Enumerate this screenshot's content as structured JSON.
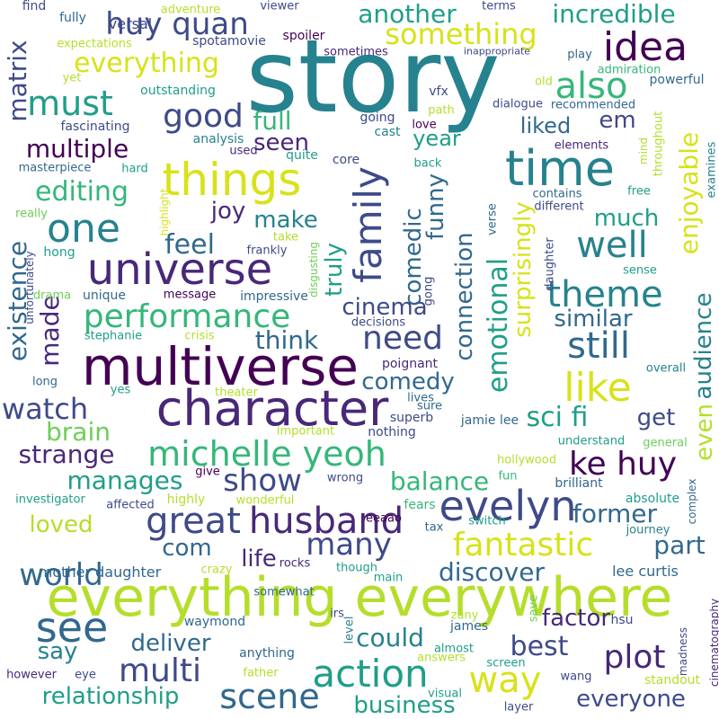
{
  "palette": {
    "p1": "#440154",
    "p2": "#482878",
    "p3": "#3e4a89",
    "p4": "#31688e",
    "p5": "#26828e",
    "p6": "#1f9e89",
    "p7": "#35b779",
    "p8": "#6ece58",
    "p9": "#b5de2b",
    "p10": "#d8e219"
  },
  "words": [
    {
      "t": "story",
      "c": "p5"
    },
    {
      "t": "everything everywhere",
      "c": "p9"
    },
    {
      "t": "multiverse",
      "c": "p1"
    },
    {
      "t": "character",
      "c": "p2"
    },
    {
      "t": "universe",
      "c": "p2"
    },
    {
      "t": "time",
      "c": "p5"
    },
    {
      "t": "things",
      "c": "p10"
    },
    {
      "t": "idea",
      "c": "p1"
    },
    {
      "t": "family",
      "c": "p3"
    },
    {
      "t": "great",
      "c": "p3"
    },
    {
      "t": "husband",
      "c": "p2"
    },
    {
      "t": "evelyn",
      "c": "p3"
    },
    {
      "t": "see",
      "c": "p4"
    },
    {
      "t": "action",
      "c": "p6"
    },
    {
      "t": "way",
      "c": "p10"
    },
    {
      "t": "scene",
      "c": "p4"
    },
    {
      "t": "michelle yeoh",
      "c": "p7"
    },
    {
      "t": "one",
      "c": "p5"
    },
    {
      "t": "huy quan",
      "c": "p3"
    },
    {
      "t": "something",
      "c": "p10"
    },
    {
      "t": "also",
      "c": "p7"
    },
    {
      "t": "like",
      "c": "p10"
    },
    {
      "t": "still",
      "c": "p4"
    },
    {
      "t": "theme",
      "c": "p5"
    },
    {
      "t": "well",
      "c": "p5"
    },
    {
      "t": "must",
      "c": "p6"
    },
    {
      "t": "good",
      "c": "p3"
    },
    {
      "t": "performance",
      "c": "p7"
    },
    {
      "t": "need",
      "c": "p3"
    },
    {
      "t": "ke huy",
      "c": "p1"
    },
    {
      "t": "fantastic",
      "c": "p10"
    },
    {
      "t": "multi",
      "c": "p3"
    },
    {
      "t": "plot",
      "c": "p2"
    },
    {
      "t": "many",
      "c": "p3"
    },
    {
      "t": "show",
      "c": "p3"
    },
    {
      "t": "world",
      "c": "p4"
    },
    {
      "t": "watch",
      "c": "p3"
    },
    {
      "t": "emotional",
      "c": "p6"
    },
    {
      "t": "enjoyable",
      "c": "p10"
    },
    {
      "t": "sci fi",
      "c": "p6"
    },
    {
      "t": "editing",
      "c": "p7"
    },
    {
      "t": "feel",
      "c": "p4"
    },
    {
      "t": "another",
      "c": "p6"
    },
    {
      "t": "incredible",
      "c": "p6"
    },
    {
      "t": "everything",
      "c": "p10"
    },
    {
      "t": "relationship",
      "c": "p6"
    },
    {
      "t": "everyone",
      "c": "p3"
    },
    {
      "t": "business",
      "c": "p6"
    },
    {
      "t": "best",
      "c": "p3"
    },
    {
      "t": "could",
      "c": "p5"
    },
    {
      "t": "deliver",
      "c": "p4"
    },
    {
      "t": "discover",
      "c": "p4"
    },
    {
      "t": "part",
      "c": "p4"
    },
    {
      "t": "former",
      "c": "p4"
    },
    {
      "t": "balance",
      "c": "p7"
    },
    {
      "t": "manages",
      "c": "p6"
    },
    {
      "t": "strange",
      "c": "p2"
    },
    {
      "t": "brain",
      "c": "p8"
    },
    {
      "t": "existence",
      "c": "p4"
    },
    {
      "t": "made",
      "c": "p2"
    },
    {
      "t": "matrix",
      "c": "p3"
    },
    {
      "t": "multiple",
      "c": "p1"
    },
    {
      "t": "full",
      "c": "p7"
    },
    {
      "t": "seen",
      "c": "p2"
    },
    {
      "t": "joy",
      "c": "p2"
    },
    {
      "t": "make",
      "c": "p5"
    },
    {
      "t": "truly",
      "c": "p6"
    },
    {
      "t": "comedic",
      "c": "p4"
    },
    {
      "t": "funny",
      "c": "p4"
    },
    {
      "t": "connection",
      "c": "p4"
    },
    {
      "t": "cinema",
      "c": "p3"
    },
    {
      "t": "think",
      "c": "p4"
    },
    {
      "t": "comedy",
      "c": "p4"
    },
    {
      "t": "surprisingly",
      "c": "p10"
    },
    {
      "t": "audience",
      "c": "p5"
    },
    {
      "t": "even",
      "c": "p9"
    },
    {
      "t": "similar",
      "c": "p4"
    },
    {
      "t": "get",
      "c": "p3"
    },
    {
      "t": "loved",
      "c": "p9"
    },
    {
      "t": "com",
      "c": "p4"
    },
    {
      "t": "life",
      "c": "p2"
    },
    {
      "t": "factor",
      "c": "p2"
    },
    {
      "t": "say",
      "c": "p5"
    },
    {
      "t": "much",
      "c": "p6"
    },
    {
      "t": "liked",
      "c": "p4"
    },
    {
      "t": "year",
      "c": "p6"
    },
    {
      "t": "em",
      "c": "p3"
    },
    {
      "t": "mother daughter",
      "c": "p4"
    },
    {
      "t": "lee curtis",
      "c": "p4"
    },
    {
      "t": "jamie lee",
      "c": "p4"
    },
    {
      "t": "absolute",
      "c": "p6"
    },
    {
      "t": "brilliant",
      "c": "p4"
    },
    {
      "t": "hollywood",
      "c": "p9"
    },
    {
      "t": "journey",
      "c": "p5"
    },
    {
      "t": "complex",
      "c": "p4"
    },
    {
      "t": "fun",
      "c": "p7"
    },
    {
      "t": "fears",
      "c": "p7"
    },
    {
      "t": "wonderful",
      "c": "p9"
    },
    {
      "t": "switch",
      "c": "p6"
    },
    {
      "t": "tax",
      "c": "p4"
    },
    {
      "t": "eeaao",
      "c": "p1"
    },
    {
      "t": "wrong",
      "c": "p3"
    },
    {
      "t": "highly",
      "c": "p9"
    },
    {
      "t": "affected",
      "c": "p3"
    },
    {
      "t": "investigator",
      "c": "p6"
    },
    {
      "t": "give",
      "c": "p1"
    },
    {
      "t": "important",
      "c": "p9"
    },
    {
      "t": "nothing",
      "c": "p3"
    },
    {
      "t": "understand",
      "c": "p6"
    },
    {
      "t": "general",
      "c": "p8"
    },
    {
      "t": "superb",
      "c": "p3"
    },
    {
      "t": "sure",
      "c": "p4"
    },
    {
      "t": "lives",
      "c": "p4"
    },
    {
      "t": "poignant",
      "c": "p2"
    },
    {
      "t": "overall",
      "c": "p5"
    },
    {
      "t": "decisions",
      "c": "p3"
    },
    {
      "t": "theater",
      "c": "p9"
    },
    {
      "t": "yes",
      "c": "p6"
    },
    {
      "t": "long",
      "c": "p4"
    },
    {
      "t": "stephanie",
      "c": "p6"
    },
    {
      "t": "crisis",
      "c": "p9"
    },
    {
      "t": "drama",
      "c": "p8"
    },
    {
      "t": "unique",
      "c": "p4"
    },
    {
      "t": "message",
      "c": "p1"
    },
    {
      "t": "impressive",
      "c": "p4"
    },
    {
      "t": "unfortunately",
      "c": "p3"
    },
    {
      "t": "hong",
      "c": "p6"
    },
    {
      "t": "really",
      "c": "p8"
    },
    {
      "t": "highlight",
      "c": "p10"
    },
    {
      "t": "take",
      "c": "p9"
    },
    {
      "t": "frankly",
      "c": "p3"
    },
    {
      "t": "disgusting",
      "c": "p8"
    },
    {
      "t": "masterpiece",
      "c": "p4"
    },
    {
      "t": "hard",
      "c": "p6"
    },
    {
      "t": "used",
      "c": "p2"
    },
    {
      "t": "quite",
      "c": "p6"
    },
    {
      "t": "core",
      "c": "p3"
    },
    {
      "t": "back",
      "c": "p6"
    },
    {
      "t": "analysis",
      "c": "p5"
    },
    {
      "t": "fascinating",
      "c": "p3"
    },
    {
      "t": "outstanding",
      "c": "p6"
    },
    {
      "t": "versal",
      "c": "p3"
    },
    {
      "t": "find",
      "c": "p3"
    },
    {
      "t": "fully",
      "c": "p4"
    },
    {
      "t": "adventure",
      "c": "p9"
    },
    {
      "t": "viewer",
      "c": "p3"
    },
    {
      "t": "terms",
      "c": "p3"
    },
    {
      "t": "spotamovie",
      "c": "p3"
    },
    {
      "t": "spoiler",
      "c": "p1"
    },
    {
      "t": "sometimes",
      "c": "p2"
    },
    {
      "t": "inappropriate",
      "c": "p3"
    },
    {
      "t": "expectations",
      "c": "p9"
    },
    {
      "t": "yet",
      "c": "p9"
    },
    {
      "t": "play",
      "c": "p4"
    },
    {
      "t": "admiration",
      "c": "p7"
    },
    {
      "t": "powerful",
      "c": "p4"
    },
    {
      "t": "recommended",
      "c": "p4"
    },
    {
      "t": "dialogue",
      "c": "p3"
    },
    {
      "t": "old",
      "c": "p9"
    },
    {
      "t": "vfx",
      "c": "p3"
    },
    {
      "t": "path",
      "c": "p9"
    },
    {
      "t": "going",
      "c": "p3"
    },
    {
      "t": "love",
      "c": "p1"
    },
    {
      "t": "cast",
      "c": "p5"
    },
    {
      "t": "throughout",
      "c": "p9"
    },
    {
      "t": "mind",
      "c": "p9"
    },
    {
      "t": "examines",
      "c": "p5"
    },
    {
      "t": "elements",
      "c": "p2"
    },
    {
      "t": "contains",
      "c": "p4"
    },
    {
      "t": "free",
      "c": "p6"
    },
    {
      "t": "different",
      "c": "p3"
    },
    {
      "t": "daughter",
      "c": "p3"
    },
    {
      "t": "sense",
      "c": "p6"
    },
    {
      "t": "verse",
      "c": "p4"
    },
    {
      "t": "gong",
      "c": "p3"
    },
    {
      "t": "rocks",
      "c": "p2"
    },
    {
      "t": "crazy",
      "c": "p9"
    },
    {
      "t": "somewhat",
      "c": "p4"
    },
    {
      "t": "though",
      "c": "p6"
    },
    {
      "t": "main",
      "c": "p6"
    },
    {
      "t": "level",
      "c": "p5"
    },
    {
      "t": "irs",
      "c": "p3"
    },
    {
      "t": "waymond",
      "c": "p4"
    },
    {
      "t": "anything",
      "c": "p4"
    },
    {
      "t": "however",
      "c": "p2"
    },
    {
      "t": "eye",
      "c": "p3"
    },
    {
      "t": "father",
      "c": "p9"
    },
    {
      "t": "zany",
      "c": "p9"
    },
    {
      "t": "james",
      "c": "p4"
    },
    {
      "t": "save",
      "c": "p8"
    },
    {
      "t": "hsu",
      "c": "p3"
    },
    {
      "t": "almost",
      "c": "p6"
    },
    {
      "t": "answers",
      "c": "p9"
    },
    {
      "t": "screen",
      "c": "p6"
    },
    {
      "t": "madness",
      "c": "p3"
    },
    {
      "t": "standout",
      "c": "p9"
    },
    {
      "t": "cinematography",
      "c": "p2"
    },
    {
      "t": "wang",
      "c": "p3"
    },
    {
      "t": "visual",
      "c": "p6"
    },
    {
      "t": "layer",
      "c": "p3"
    }
  ]
}
